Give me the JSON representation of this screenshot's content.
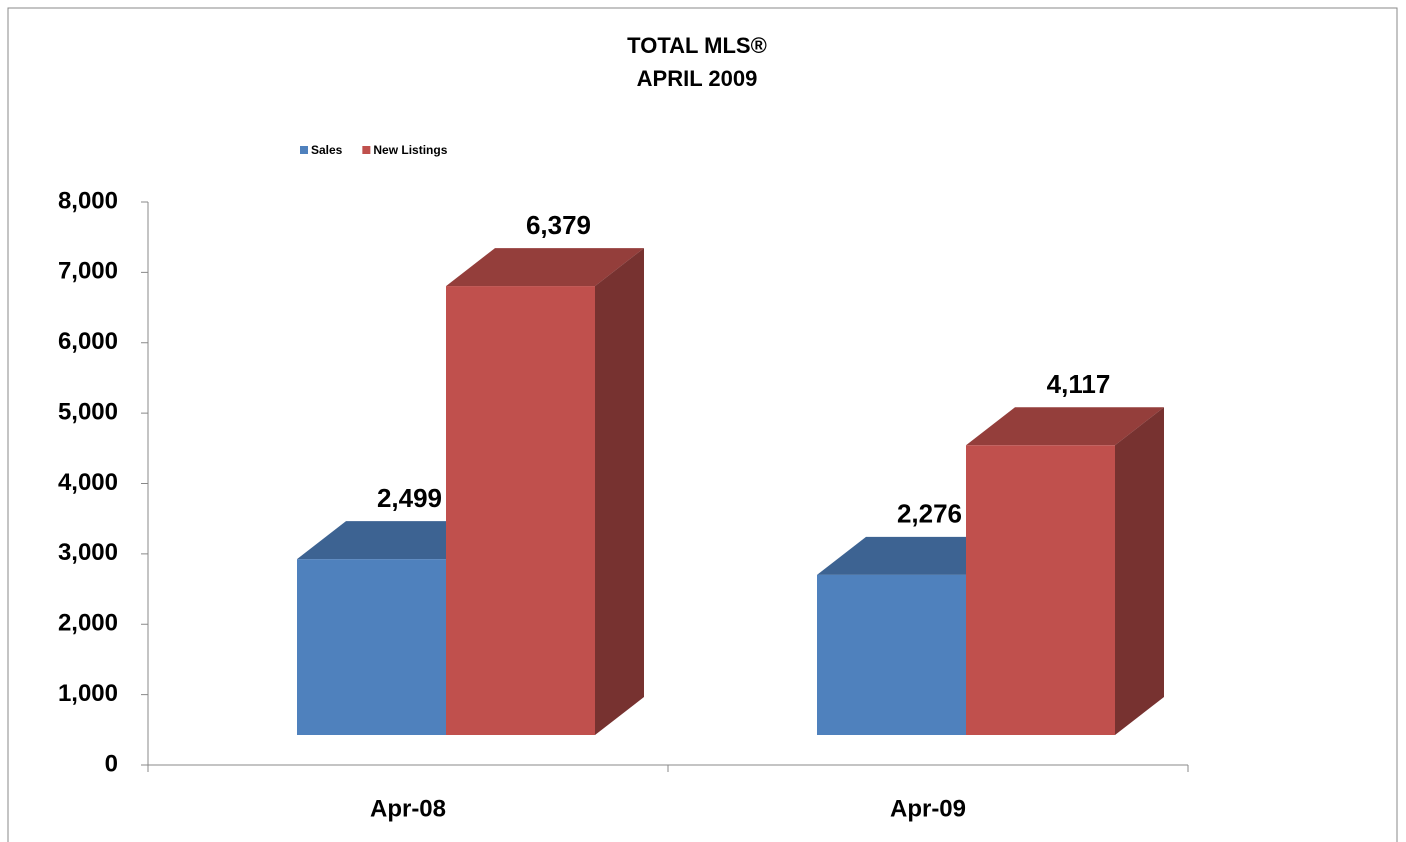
{
  "chart_data": {
    "type": "bar3d",
    "title": "TOTAL MLS®",
    "subtitle": "APRIL 2009",
    "categories": [
      "Apr-08",
      "Apr-09"
    ],
    "series": [
      {
        "name": "Sales",
        "color": "#4f81bd",
        "values": [
          2499,
          2276
        ],
        "value_labels": [
          "2,499",
          "2,276"
        ]
      },
      {
        "name": "New Listings",
        "color": "#c0504d",
        "values": [
          6379,
          4117
        ],
        "value_labels": [
          "6,379",
          "4,117"
        ]
      }
    ],
    "ylim": [
      0,
      8000
    ],
    "yticks": [
      0,
      {
        "value": 1000,
        "label": "1,000"
      },
      {
        "value": 2000,
        "label": "2,000"
      },
      {
        "value": 3000,
        "label": "3,000"
      },
      {
        "value": 4000,
        "label": "4,000"
      },
      {
        "value": 5000,
        "label": "5,000"
      },
      {
        "value": 6000,
        "label": "6,000"
      },
      {
        "value": 7000,
        "label": "7,000"
      },
      {
        "value": 8000,
        "label": "8,000"
      }
    ],
    "legend": "top-left"
  }
}
